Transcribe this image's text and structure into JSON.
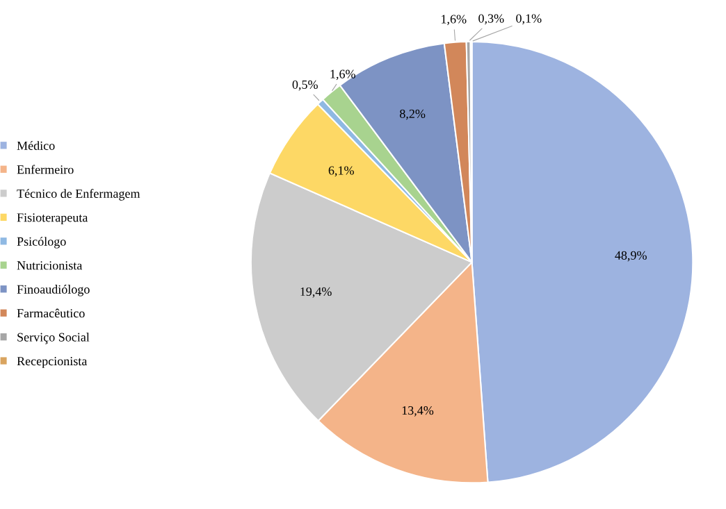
{
  "chart_data": {
    "type": "pie",
    "categories": [
      "Médico",
      "Enfermeiro",
      "Técnico de Enfermagem",
      "Fisioterapeuta",
      "Psicólogo",
      "Nutricionista",
      "Finoaudiólogo",
      "Farmacêutico",
      "Serviço Social",
      "Recepcionista"
    ],
    "values": [
      48.9,
      13.4,
      19.4,
      6.1,
      0.5,
      1.6,
      8.2,
      1.6,
      0.3,
      0.1
    ],
    "colors": [
      "#9db3e0",
      "#f4b489",
      "#cccccc",
      "#fdd865",
      "#8fb9e3",
      "#a8d38f",
      "#7d93c4",
      "#d2875a",
      "#a6a6a6",
      "#d9a45f"
    ],
    "value_labels": [
      "48,9%",
      "13,4%",
      "19,4%",
      "6,1%",
      "0,5%",
      "1,6%",
      "8,2%",
      "1,6%",
      "0,3%",
      "0,1%"
    ],
    "legend": "left"
  }
}
